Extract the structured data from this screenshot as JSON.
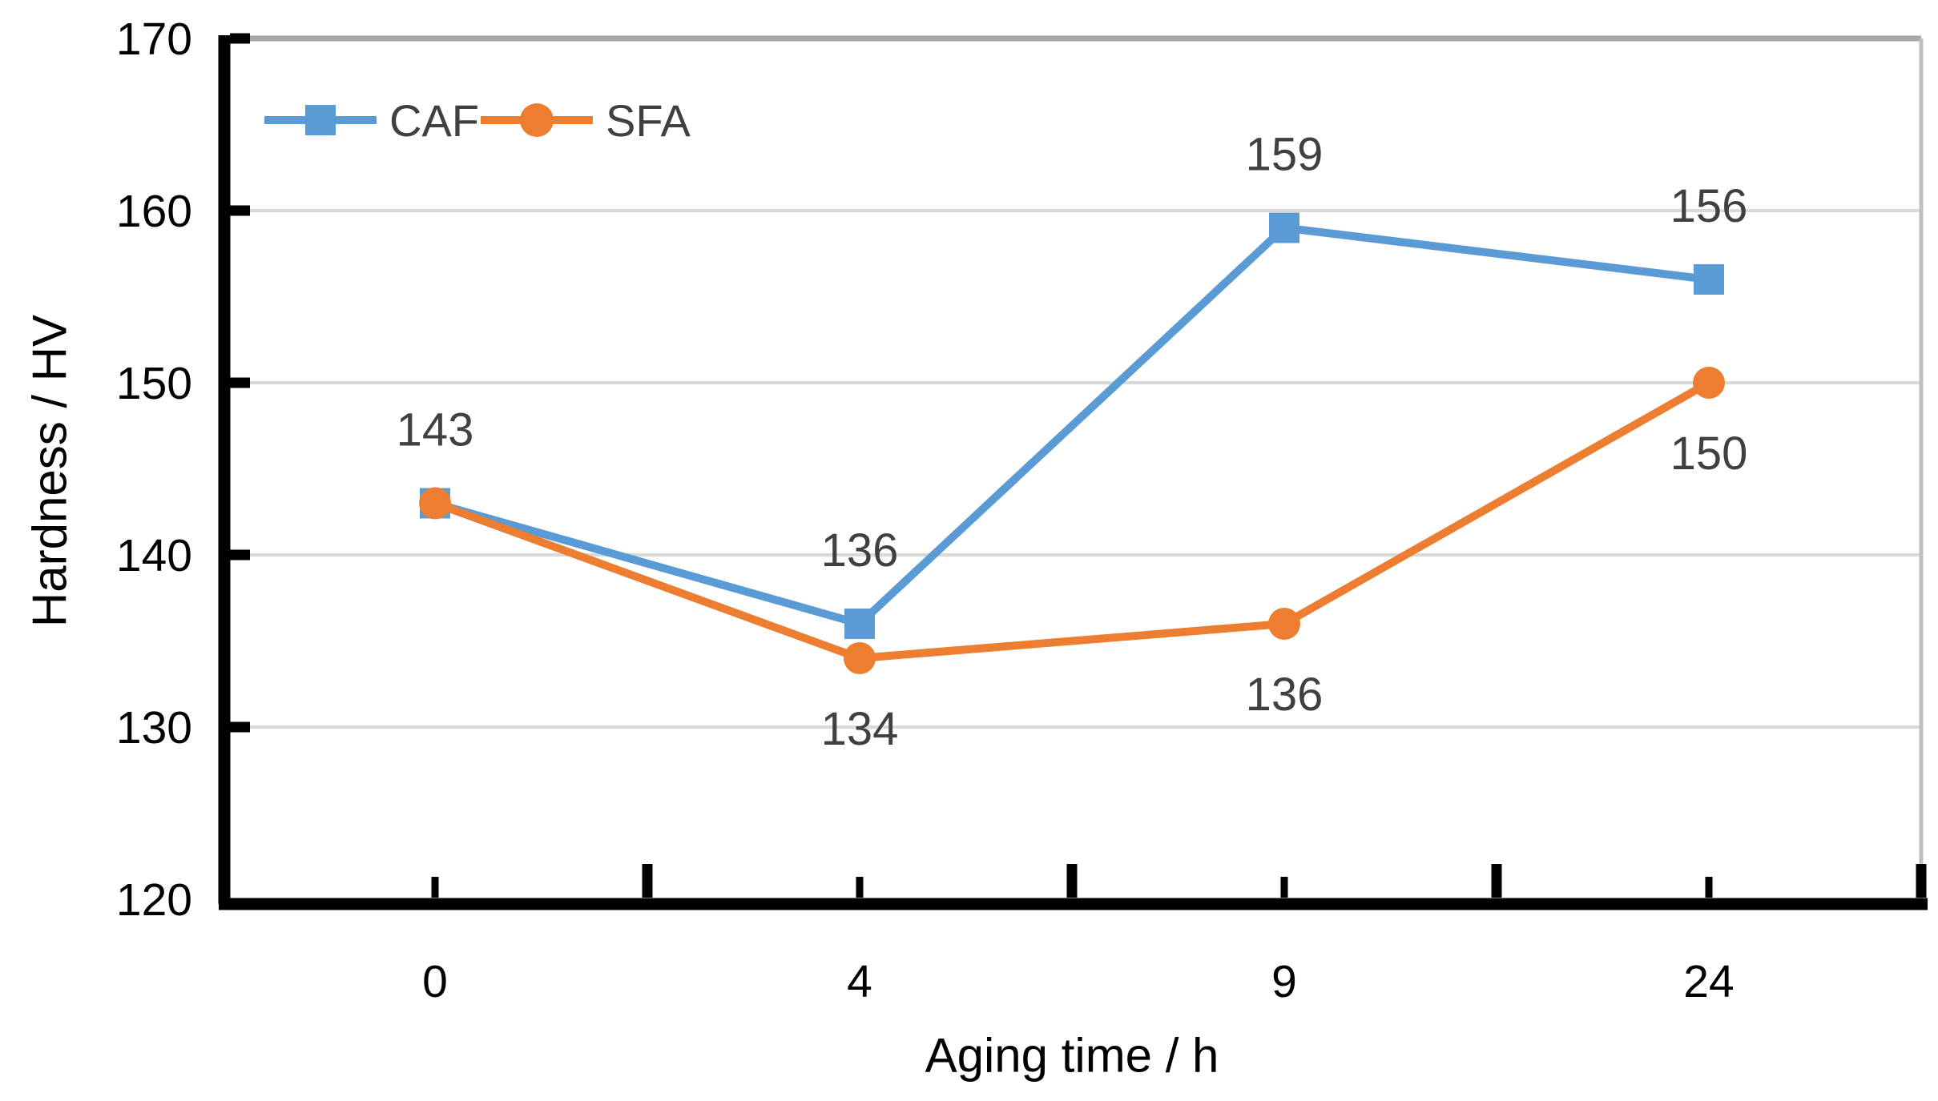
{
  "figure": {
    "background": "#ffffff"
  },
  "chart_data": {
    "type": "line",
    "title": "",
    "xlabel": "Aging time / h",
    "ylabel": "Hardness / HV",
    "categories": [
      "0",
      "4",
      "9",
      "24"
    ],
    "series": [
      {
        "name": "CAF",
        "color": "#5B9BD5",
        "marker": "square",
        "values": [
          143,
          136,
          159,
          156
        ],
        "data_labels": [
          {
            "text": "143",
            "placement": "above"
          },
          {
            "text": "136",
            "placement": "above"
          },
          {
            "text": "159",
            "placement": "above"
          },
          {
            "text": "156",
            "placement": "above"
          }
        ]
      },
      {
        "name": "SFA",
        "color": "#ED7D31",
        "marker": "circle",
        "values": [
          143,
          134,
          136,
          150
        ],
        "data_labels": [
          null,
          {
            "text": "134",
            "placement": "below"
          },
          {
            "text": "136",
            "placement": "below"
          },
          {
            "text": "150",
            "placement": "below"
          }
        ]
      }
    ],
    "ylim": [
      120,
      170
    ],
    "y_tick_step": 10,
    "y_tick_labels": [
      "120",
      "130",
      "140",
      "150",
      "160",
      "170"
    ],
    "grid": true,
    "legend_position": "top-left-inside"
  },
  "colors": {
    "gridline": "#D9D9D9",
    "top_gridline": "#A6A6A6",
    "right_border": "#BFBFBF",
    "axis_line": "#000000",
    "tick_label": "#000000",
    "data_label": "#404040",
    "legend_text": "#404040"
  }
}
